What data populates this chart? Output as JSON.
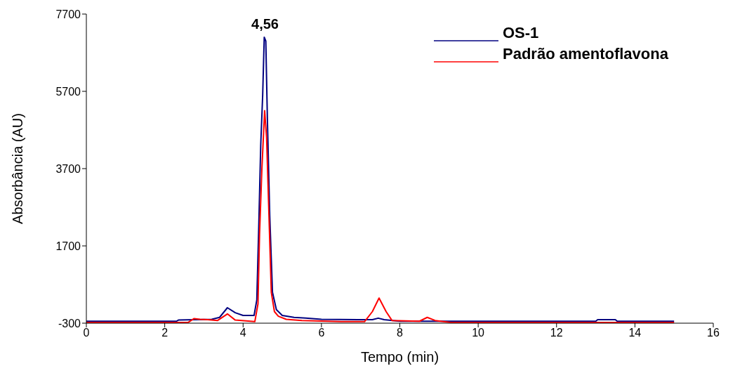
{
  "chart_data": {
    "type": "line",
    "xlabel": "Tempo (min)",
    "ylabel": "Absorbância (AU)",
    "xlim": [
      0,
      16
    ],
    "xticks": [
      0,
      2,
      4,
      6,
      8,
      10,
      12,
      14,
      16
    ],
    "ylim": [
      -300,
      7700
    ],
    "yticks": [
      -300,
      1700,
      3700,
      5700,
      7700
    ],
    "grid": false,
    "legend": "top right",
    "marker": "none",
    "line_style": "solid",
    "annotations": [
      {
        "text": "4,56",
        "x": 4.56,
        "y": 7100
      }
    ],
    "series": [
      {
        "name": "OS-1",
        "color": "#000080",
        "x": [
          0,
          2.3,
          2.35,
          3.2,
          3.4,
          3.6,
          3.8,
          4.0,
          4.28,
          4.35,
          4.4,
          4.45,
          4.5,
          4.54,
          4.58,
          4.62,
          4.68,
          4.75,
          4.85,
          5.0,
          5.3,
          5.6,
          6,
          7.3,
          7.45,
          7.6,
          8,
          9.3,
          13,
          13.05,
          13.5,
          13.55,
          15
        ],
        "values": [
          -250,
          -250,
          -220,
          -200,
          -150,
          100,
          -30,
          -100,
          -100,
          300,
          2200,
          4300,
          5600,
          7100,
          7000,
          5000,
          2500,
          500,
          50,
          -100,
          -150,
          -170,
          -200,
          -210,
          -170,
          -210,
          -250,
          -250,
          -250,
          -210,
          -210,
          -250,
          -250
        ]
      },
      {
        "name": "Padrão amentoflavona",
        "color": "#ff0000",
        "x": [
          0,
          2.6,
          2.75,
          2.9,
          3.1,
          3.35,
          3.6,
          3.8,
          4.3,
          4.38,
          4.42,
          4.48,
          4.55,
          4.6,
          4.66,
          4.72,
          4.8,
          4.9,
          5.1,
          5.5,
          6.5,
          7.1,
          7.3,
          7.47,
          7.65,
          7.8,
          8.5,
          8.7,
          8.9,
          9.3,
          15
        ],
        "values": [
          -280,
          -280,
          -180,
          -200,
          -210,
          -230,
          -60,
          -220,
          -260,
          200,
          2000,
          3700,
          5200,
          4500,
          2500,
          500,
          0,
          -120,
          -200,
          -230,
          -260,
          -260,
          0,
          350,
          0,
          -230,
          -250,
          -150,
          -230,
          -280,
          -280
        ]
      }
    ]
  }
}
